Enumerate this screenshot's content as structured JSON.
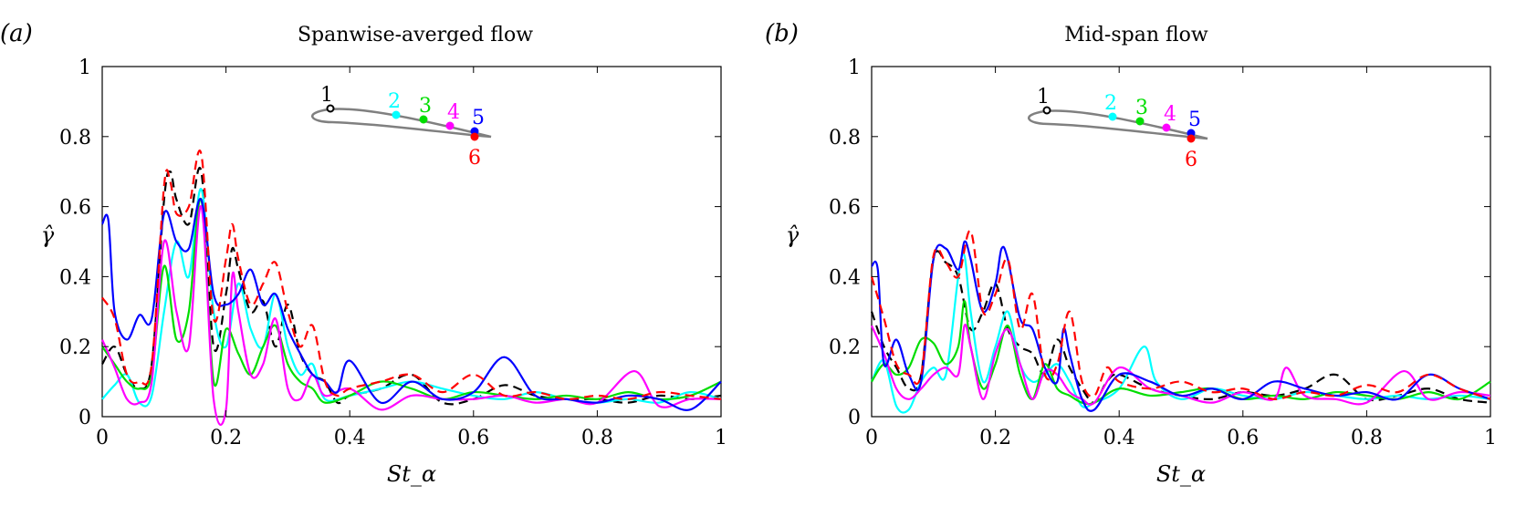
{
  "chart_data": [
    {
      "type": "line",
      "panel_label": "(a)",
      "title": "Spanwise-averged flow",
      "xlabel": "St_α",
      "ylabel": "γ̂",
      "xlim": [
        0,
        1
      ],
      "ylim": [
        0,
        1
      ],
      "xticks": [
        0,
        0.2,
        0.4,
        0.6,
        0.8,
        1
      ],
      "yticks": [
        0,
        0.2,
        0.4,
        0.6,
        0.8,
        1
      ],
      "xtick_labels": [
        "0",
        "0.2",
        "0.4",
        "0.6",
        "0.8",
        "1"
      ],
      "ytick_labels": [
        "0",
        "0.2",
        "0.4",
        "0.6",
        "0.8",
        "1"
      ],
      "grid": false,
      "inset": {
        "description_labels": [
          "1",
          "2",
          "3",
          "4",
          "5",
          "6"
        ]
      },
      "series": [
        {
          "color": "#000000",
          "dash": true,
          "x": [
            0,
            0.02,
            0.04,
            0.06,
            0.08,
            0.1,
            0.11,
            0.12,
            0.14,
            0.16,
            0.18,
            0.2,
            0.21,
            0.22,
            0.24,
            0.26,
            0.28,
            0.3,
            0.32,
            0.34,
            0.36,
            0.38,
            0.4,
            0.45,
            0.5,
            0.55,
            0.6,
            0.65,
            0.7,
            0.75,
            0.8,
            0.85,
            0.9,
            0.95,
            1.0
          ],
          "y": [
            0.15,
            0.2,
            0.12,
            0.08,
            0.15,
            0.62,
            0.7,
            0.62,
            0.55,
            0.7,
            0.2,
            0.35,
            0.48,
            0.42,
            0.3,
            0.33,
            0.2,
            0.32,
            0.18,
            0.12,
            0.1,
            0.04,
            0.06,
            0.08,
            0.12,
            0.04,
            0.05,
            0.09,
            0.06,
            0.05,
            0.05,
            0.04,
            0.06,
            0.05,
            0.06
          ]
        },
        {
          "color": "#00ffff",
          "dash": false,
          "x": [
            0,
            0.02,
            0.04,
            0.06,
            0.08,
            0.1,
            0.12,
            0.14,
            0.16,
            0.18,
            0.2,
            0.22,
            0.24,
            0.26,
            0.28,
            0.3,
            0.32,
            0.34,
            0.36,
            0.4,
            0.45,
            0.5,
            0.55,
            0.6,
            0.65,
            0.7,
            0.75,
            0.8,
            0.85,
            0.9,
            0.95,
            1.0
          ],
          "y": [
            0.05,
            0.09,
            0.12,
            0.04,
            0.06,
            0.3,
            0.5,
            0.4,
            0.65,
            0.3,
            0.2,
            0.38,
            0.25,
            0.2,
            0.35,
            0.2,
            0.12,
            0.15,
            0.05,
            0.06,
            0.08,
            0.1,
            0.08,
            0.06,
            0.05,
            0.07,
            0.05,
            0.04,
            0.05,
            0.04,
            0.07,
            0.05
          ]
        },
        {
          "color": "#00dd00",
          "dash": false,
          "x": [
            0,
            0.02,
            0.04,
            0.06,
            0.08,
            0.1,
            0.12,
            0.14,
            0.16,
            0.18,
            0.2,
            0.22,
            0.24,
            0.26,
            0.28,
            0.3,
            0.32,
            0.34,
            0.36,
            0.4,
            0.45,
            0.5,
            0.55,
            0.6,
            0.65,
            0.7,
            0.75,
            0.8,
            0.85,
            0.9,
            0.95,
            1.0
          ],
          "y": [
            0.2,
            0.15,
            0.1,
            0.08,
            0.12,
            0.43,
            0.22,
            0.3,
            0.62,
            0.1,
            0.25,
            0.18,
            0.12,
            0.2,
            0.26,
            0.15,
            0.1,
            0.08,
            0.04,
            0.06,
            0.1,
            0.08,
            0.05,
            0.07,
            0.06,
            0.05,
            0.06,
            0.05,
            0.07,
            0.05,
            0.06,
            0.1
          ]
        },
        {
          "color": "#ff00ff",
          "dash": false,
          "x": [
            0,
            0.02,
            0.04,
            0.06,
            0.08,
            0.1,
            0.12,
            0.14,
            0.16,
            0.18,
            0.2,
            0.21,
            0.22,
            0.24,
            0.26,
            0.28,
            0.3,
            0.32,
            0.34,
            0.36,
            0.4,
            0.45,
            0.5,
            0.55,
            0.6,
            0.65,
            0.7,
            0.75,
            0.8,
            0.86,
            0.9,
            0.95,
            1.0
          ],
          "y": [
            0.22,
            0.14,
            0.05,
            0.04,
            0.1,
            0.5,
            0.3,
            0.2,
            0.6,
            0.05,
            0.02,
            0.4,
            0.3,
            0.12,
            0.15,
            0.28,
            0.08,
            0.05,
            0.12,
            0.06,
            0.08,
            0.02,
            0.06,
            0.05,
            0.05,
            0.06,
            0.04,
            0.05,
            0.04,
            0.13,
            0.03,
            0.05,
            0.05
          ]
        },
        {
          "color": "#0000ff",
          "dash": false,
          "x": [
            0,
            0.01,
            0.02,
            0.04,
            0.06,
            0.08,
            0.1,
            0.12,
            0.14,
            0.16,
            0.18,
            0.2,
            0.22,
            0.24,
            0.26,
            0.28,
            0.3,
            0.32,
            0.34,
            0.36,
            0.38,
            0.4,
            0.45,
            0.5,
            0.55,
            0.6,
            0.65,
            0.7,
            0.75,
            0.8,
            0.85,
            0.9,
            0.95,
            1.0
          ],
          "y": [
            0.55,
            0.56,
            0.3,
            0.22,
            0.29,
            0.28,
            0.58,
            0.5,
            0.48,
            0.62,
            0.35,
            0.32,
            0.35,
            0.42,
            0.32,
            0.35,
            0.25,
            0.18,
            0.12,
            0.1,
            0.07,
            0.16,
            0.04,
            0.1,
            0.05,
            0.07,
            0.17,
            0.06,
            0.05,
            0.04,
            0.06,
            0.05,
            0.02,
            0.1
          ]
        },
        {
          "color": "#ff0000",
          "dash": true,
          "x": [
            0,
            0.02,
            0.04,
            0.06,
            0.08,
            0.1,
            0.11,
            0.12,
            0.14,
            0.16,
            0.18,
            0.2,
            0.21,
            0.22,
            0.24,
            0.26,
            0.28,
            0.3,
            0.32,
            0.34,
            0.36,
            0.38,
            0.4,
            0.45,
            0.5,
            0.55,
            0.6,
            0.65,
            0.7,
            0.75,
            0.8,
            0.85,
            0.9,
            0.95,
            1.0
          ],
          "y": [
            0.34,
            0.28,
            0.12,
            0.1,
            0.15,
            0.66,
            0.67,
            0.58,
            0.6,
            0.75,
            0.28,
            0.45,
            0.55,
            0.45,
            0.32,
            0.38,
            0.44,
            0.3,
            0.2,
            0.26,
            0.1,
            0.06,
            0.08,
            0.1,
            0.12,
            0.07,
            0.12,
            0.06,
            0.07,
            0.05,
            0.06,
            0.05,
            0.07,
            0.06,
            0.05
          ]
        }
      ]
    },
    {
      "type": "line",
      "panel_label": "(b)",
      "title": "Mid-span flow",
      "xlabel": "St_α",
      "ylabel": "γ̂",
      "xlim": [
        0,
        1
      ],
      "ylim": [
        0,
        1
      ],
      "xticks": [
        0,
        0.2,
        0.4,
        0.6,
        0.8,
        1
      ],
      "yticks": [
        0,
        0.2,
        0.4,
        0.6,
        0.8,
        1
      ],
      "xtick_labels": [
        "0",
        "0.2",
        "0.4",
        "0.6",
        "0.8",
        "1"
      ],
      "ytick_labels": [
        "0",
        "0.2",
        "0.4",
        "0.6",
        "0.8",
        "1"
      ],
      "grid": false,
      "inset": {
        "description_labels": [
          "1",
          "2",
          "3",
          "4",
          "5",
          "6"
        ]
      },
      "series": [
        {
          "color": "#000000",
          "dash": true,
          "x": [
            0,
            0.02,
            0.04,
            0.06,
            0.08,
            0.1,
            0.12,
            0.14,
            0.16,
            0.18,
            0.2,
            0.22,
            0.24,
            0.26,
            0.28,
            0.3,
            0.32,
            0.34,
            0.36,
            0.38,
            0.4,
            0.45,
            0.5,
            0.55,
            0.6,
            0.65,
            0.7,
            0.75,
            0.8,
            0.85,
            0.9,
            0.95,
            1.0
          ],
          "y": [
            0.3,
            0.2,
            0.14,
            0.08,
            0.12,
            0.45,
            0.44,
            0.4,
            0.25,
            0.3,
            0.38,
            0.25,
            0.2,
            0.18,
            0.12,
            0.22,
            0.14,
            0.08,
            0.04,
            0.1,
            0.12,
            0.08,
            0.06,
            0.05,
            0.07,
            0.06,
            0.08,
            0.12,
            0.05,
            0.06,
            0.08,
            0.05,
            0.04
          ]
        },
        {
          "color": "#00ffff",
          "dash": false,
          "x": [
            0,
            0.02,
            0.04,
            0.06,
            0.08,
            0.1,
            0.12,
            0.14,
            0.15,
            0.16,
            0.18,
            0.2,
            0.22,
            0.24,
            0.26,
            0.28,
            0.3,
            0.32,
            0.34,
            0.36,
            0.4,
            0.44,
            0.46,
            0.5,
            0.55,
            0.6,
            0.65,
            0.7,
            0.75,
            0.8,
            0.85,
            0.9,
            0.95,
            1.0
          ],
          "y": [
            0.1,
            0.16,
            0.03,
            0.02,
            0.1,
            0.14,
            0.12,
            0.4,
            0.46,
            0.3,
            0.1,
            0.2,
            0.3,
            0.15,
            0.1,
            0.12,
            0.15,
            0.1,
            0.03,
            0.04,
            0.08,
            0.2,
            0.1,
            0.05,
            0.08,
            0.06,
            0.05,
            0.07,
            0.06,
            0.05,
            0.06,
            0.05,
            0.06,
            0.05
          ]
        },
        {
          "color": "#00dd00",
          "dash": false,
          "x": [
            0,
            0.02,
            0.04,
            0.06,
            0.08,
            0.1,
            0.12,
            0.14,
            0.15,
            0.16,
            0.18,
            0.2,
            0.22,
            0.24,
            0.26,
            0.28,
            0.3,
            0.32,
            0.34,
            0.36,
            0.4,
            0.45,
            0.5,
            0.55,
            0.6,
            0.65,
            0.7,
            0.75,
            0.8,
            0.85,
            0.9,
            0.95,
            1.0
          ],
          "y": [
            0.1,
            0.15,
            0.12,
            0.14,
            0.22,
            0.21,
            0.15,
            0.2,
            0.33,
            0.2,
            0.08,
            0.15,
            0.26,
            0.12,
            0.05,
            0.15,
            0.08,
            0.06,
            0.04,
            0.04,
            0.08,
            0.06,
            0.07,
            0.08,
            0.05,
            0.06,
            0.05,
            0.07,
            0.06,
            0.05,
            0.07,
            0.05,
            0.1
          ]
        },
        {
          "color": "#ff00ff",
          "dash": false,
          "x": [
            0,
            0.02,
            0.04,
            0.06,
            0.08,
            0.1,
            0.12,
            0.14,
            0.15,
            0.16,
            0.18,
            0.2,
            0.22,
            0.24,
            0.26,
            0.28,
            0.3,
            0.32,
            0.34,
            0.36,
            0.4,
            0.45,
            0.5,
            0.55,
            0.6,
            0.65,
            0.67,
            0.7,
            0.75,
            0.8,
            0.86,
            0.9,
            0.95,
            1.0
          ],
          "y": [
            0.26,
            0.18,
            0.08,
            0.05,
            0.08,
            0.12,
            0.14,
            0.12,
            0.26,
            0.2,
            0.05,
            0.18,
            0.25,
            0.15,
            0.05,
            0.13,
            0.12,
            0.07,
            0.05,
            0.04,
            0.14,
            0.08,
            0.06,
            0.04,
            0.07,
            0.05,
            0.14,
            0.06,
            0.05,
            0.04,
            0.13,
            0.05,
            0.07,
            0.06
          ]
        },
        {
          "color": "#0000ff",
          "dash": false,
          "x": [
            0,
            0.01,
            0.02,
            0.04,
            0.06,
            0.08,
            0.1,
            0.12,
            0.14,
            0.15,
            0.16,
            0.18,
            0.2,
            0.21,
            0.22,
            0.24,
            0.26,
            0.28,
            0.3,
            0.31,
            0.32,
            0.34,
            0.36,
            0.4,
            0.45,
            0.5,
            0.55,
            0.6,
            0.65,
            0.7,
            0.75,
            0.8,
            0.85,
            0.9,
            0.95,
            1.0
          ],
          "y": [
            0.43,
            0.42,
            0.15,
            0.22,
            0.12,
            0.1,
            0.45,
            0.48,
            0.42,
            0.5,
            0.45,
            0.3,
            0.38,
            0.48,
            0.45,
            0.28,
            0.25,
            0.14,
            0.1,
            0.25,
            0.18,
            0.05,
            0.02,
            0.12,
            0.1,
            0.06,
            0.08,
            0.05,
            0.1,
            0.08,
            0.06,
            0.07,
            0.05,
            0.12,
            0.08,
            0.05
          ]
        },
        {
          "color": "#ff0000",
          "dash": true,
          "x": [
            0,
            0.02,
            0.04,
            0.06,
            0.08,
            0.1,
            0.12,
            0.14,
            0.16,
            0.18,
            0.2,
            0.22,
            0.24,
            0.26,
            0.28,
            0.3,
            0.32,
            0.34,
            0.36,
            0.38,
            0.4,
            0.45,
            0.5,
            0.55,
            0.6,
            0.65,
            0.7,
            0.75,
            0.8,
            0.85,
            0.9,
            0.95,
            1.0
          ],
          "y": [
            0.4,
            0.28,
            0.15,
            0.12,
            0.12,
            0.46,
            0.44,
            0.4,
            0.53,
            0.3,
            0.35,
            0.45,
            0.25,
            0.35,
            0.12,
            0.15,
            0.3,
            0.1,
            0.06,
            0.14,
            0.1,
            0.08,
            0.1,
            0.07,
            0.08,
            0.05,
            0.07,
            0.06,
            0.09,
            0.07,
            0.12,
            0.08,
            0.05
          ]
        }
      ]
    }
  ]
}
